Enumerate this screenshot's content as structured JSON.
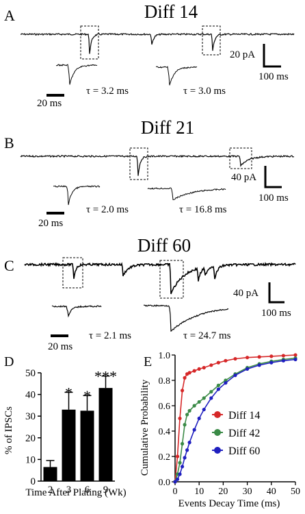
{
  "panels": {
    "A": {
      "letter": "A",
      "title": "Diff 14",
      "scale": {
        "amp": "20 pA",
        "time": "100 ms"
      },
      "inset_scale": "20 ms",
      "taus": [
        "τ = 3.2 ms",
        "τ = 3.0 ms"
      ]
    },
    "B": {
      "letter": "B",
      "title": "Diff 21",
      "scale": {
        "amp": "40 pA",
        "time": "100 ms"
      },
      "inset_scale": "20 ms",
      "taus": [
        "τ = 2.0 ms",
        "τ = 16.8 ms"
      ]
    },
    "C": {
      "letter": "C",
      "title": "Diff 60",
      "scale": {
        "amp": "40 pA",
        "time": "100 ms"
      },
      "inset_scale": "20 ms",
      "taus": [
        "τ = 2.1 ms",
        "τ = 24.7 ms"
      ]
    },
    "D": {
      "letter": "D"
    },
    "E": {
      "letter": "E"
    }
  },
  "chart_data": [
    {
      "panel": "D",
      "type": "bar",
      "xlabel": "Time After Plating (Wk)",
      "ylabel": "% of IPSCs",
      "categories": [
        "2",
        "3",
        "6",
        "9"
      ],
      "values": [
        6.5,
        33,
        32.5,
        43
      ],
      "errors": [
        3,
        8,
        7,
        5.5
      ],
      "significance": [
        "",
        "*",
        "*",
        "***"
      ],
      "ylim": [
        0,
        50
      ],
      "yticks": [
        0,
        10,
        20,
        30,
        40,
        50
      ],
      "bar_color": "#000000"
    },
    {
      "panel": "E",
      "type": "line",
      "xlabel": "Events Decay Time (ms)",
      "ylabel": "Cumulative Probability",
      "xlim": [
        0,
        50
      ],
      "ylim": [
        0,
        1.0
      ],
      "xticks": [
        0,
        10,
        20,
        30,
        40,
        50
      ],
      "yticks": [
        0.0,
        0.2,
        0.4,
        0.6,
        0.8,
        1.0
      ],
      "legend_position": "right",
      "series": [
        {
          "name": "Diff 14",
          "color": "#d62728",
          "x": [
            0,
            1,
            2,
            3,
            4,
            5,
            6,
            8,
            10,
            12,
            15,
            18,
            21,
            25,
            30,
            35,
            40,
            45,
            50
          ],
          "y": [
            0,
            0.2,
            0.5,
            0.72,
            0.82,
            0.85,
            0.86,
            0.875,
            0.89,
            0.9,
            0.92,
            0.94,
            0.955,
            0.97,
            0.98,
            0.985,
            0.99,
            0.995,
            1.0
          ]
        },
        {
          "name": "Diff 42",
          "color": "#3a8a46",
          "x": [
            0,
            1,
            2,
            3,
            4,
            5,
            6,
            8,
            10,
            12,
            15,
            18,
            21,
            25,
            30,
            35,
            40,
            45,
            50
          ],
          "y": [
            0,
            0.06,
            0.15,
            0.3,
            0.45,
            0.53,
            0.56,
            0.6,
            0.63,
            0.66,
            0.71,
            0.76,
            0.8,
            0.85,
            0.9,
            0.93,
            0.95,
            0.965,
            0.975
          ]
        },
        {
          "name": "Diff 60",
          "color": "#1f1fbf",
          "x": [
            0,
            1,
            2,
            3,
            4,
            5,
            6,
            8,
            10,
            12,
            15,
            18,
            21,
            25,
            30,
            35,
            40,
            45,
            50
          ],
          "y": [
            0,
            0.02,
            0.06,
            0.12,
            0.19,
            0.25,
            0.31,
            0.41,
            0.5,
            0.57,
            0.66,
            0.73,
            0.78,
            0.84,
            0.89,
            0.92,
            0.94,
            0.955,
            0.965
          ]
        }
      ]
    }
  ]
}
